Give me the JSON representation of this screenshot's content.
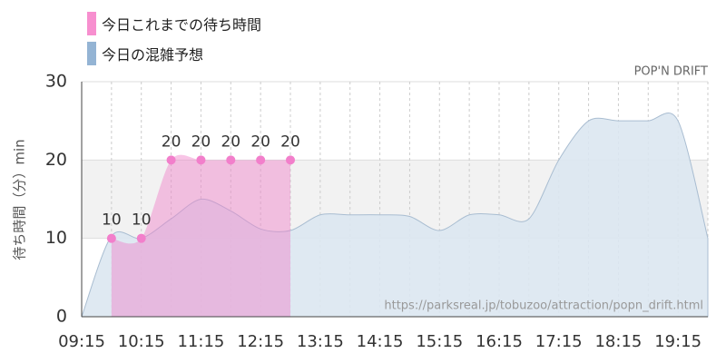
{
  "chart_data": {
    "type": "area",
    "title": "POP'N DRIFT",
    "y_label": "待ち時間（分）min",
    "watermark": "https://parksreal.jp/tobuzoo/attraction/popn_drift.html",
    "x": [
      "09:15",
      "09:45",
      "10:15",
      "10:45",
      "11:15",
      "11:45",
      "12:15",
      "12:45",
      "13:15",
      "13:45",
      "14:15",
      "14:45",
      "15:15",
      "15:45",
      "16:15",
      "16:45",
      "17:15",
      "17:45",
      "18:15",
      "18:45",
      "19:15",
      "19:45"
    ],
    "xlim": [
      "09:15",
      "19:45"
    ],
    "xticks": [
      "09:15",
      "10:15",
      "11:15",
      "12:15",
      "13:15",
      "14:15",
      "15:15",
      "16:15",
      "17:15",
      "18:15",
      "19:15"
    ],
    "ylim": [
      0,
      30
    ],
    "yticks": [
      0,
      10,
      20,
      30
    ],
    "shaded_band": [
      10,
      20
    ],
    "grid": true,
    "series": [
      {
        "name": "今日これまでの待ち時間",
        "color": "#f78fcf",
        "values": [
          null,
          10,
          10,
          20,
          20,
          20,
          20,
          20,
          null,
          null,
          null,
          null,
          null,
          null,
          null,
          null,
          null,
          null,
          null,
          null,
          null,
          null
        ],
        "value_labels": [
          null,
          "10",
          "10",
          "20",
          "20",
          "20",
          "20",
          "20",
          null,
          null,
          null,
          null,
          null,
          null,
          null,
          null,
          null,
          null,
          null,
          null,
          null,
          null
        ]
      },
      {
        "name": "今日の混雑予想",
        "color": "#94b4d4",
        "values": [
          0,
          10.3,
          10,
          12.5,
          15,
          13.5,
          11.2,
          11,
          13,
          13,
          13,
          12.8,
          11,
          13,
          13,
          12.5,
          20,
          25,
          25,
          25,
          25,
          10
        ]
      }
    ]
  }
}
